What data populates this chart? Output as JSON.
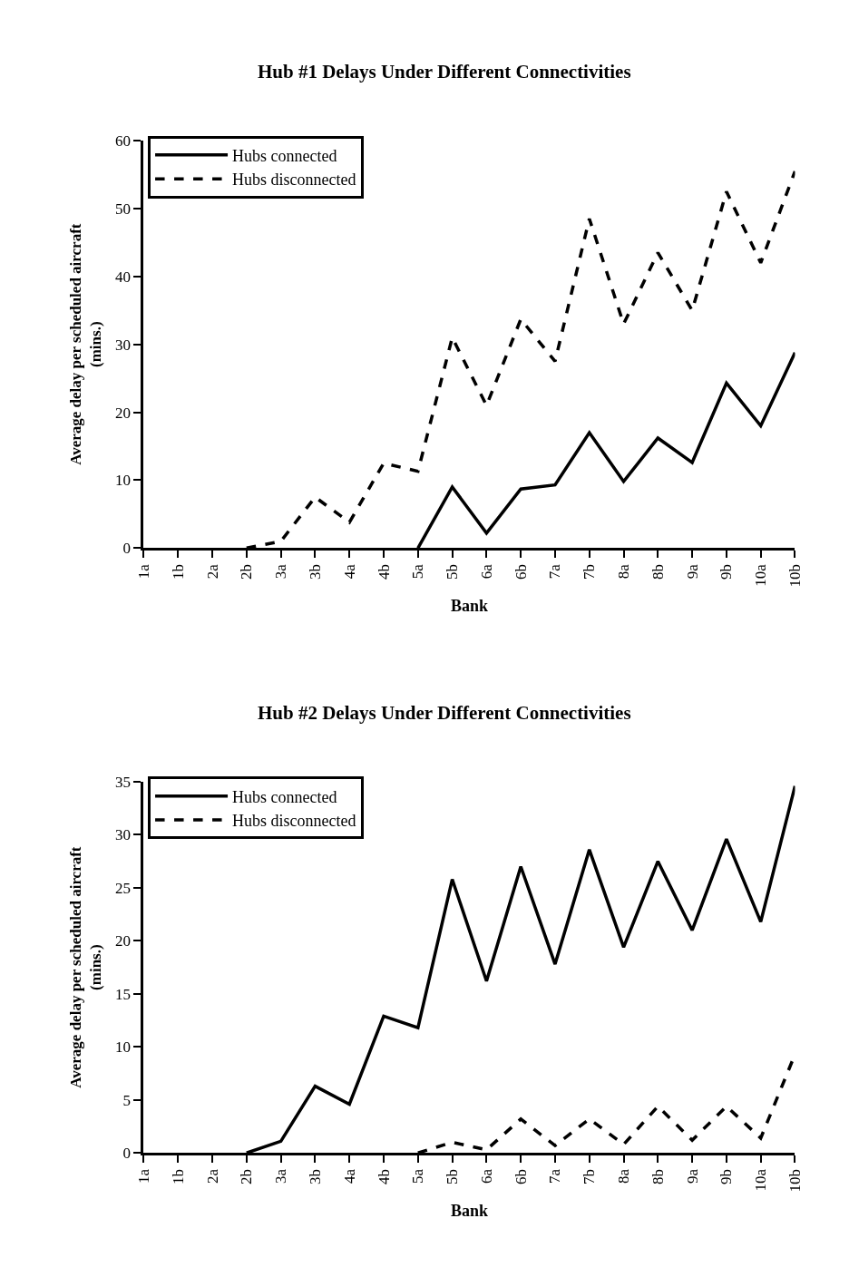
{
  "chart_data": [
    {
      "type": "line",
      "title": "Hub #1 Delays Under Different Connectivities",
      "xlabel": "Bank",
      "ylabel": "Average delay per scheduled aircraft\n(mins.)",
      "categories": [
        "1a",
        "1b",
        "2a",
        "2b",
        "3a",
        "3b",
        "4a",
        "4b",
        "5a",
        "5b",
        "6a",
        "6b",
        "7a",
        "7b",
        "8a",
        "8b",
        "9a",
        "9b",
        "10a",
        "10b"
      ],
      "ylim": [
        0,
        60
      ],
      "yticks": [
        0,
        10,
        20,
        30,
        40,
        50,
        60
      ],
      "legend": "top left",
      "series": [
        {
          "name": "Hubs connected",
          "color": "#000000",
          "line_style": "solid",
          "values": [
            null,
            null,
            null,
            null,
            null,
            null,
            null,
            null,
            0,
            9,
            2.2,
            8.7,
            9.3,
            17,
            9.8,
            16.2,
            12.6,
            24.3,
            18,
            28.8
          ]
        },
        {
          "name": "Hubs disconnected",
          "color": "#000000",
          "line_style": "dashed",
          "values": [
            null,
            null,
            null,
            0,
            1,
            7.5,
            3.8,
            12.5,
            11.3,
            31,
            21,
            33.7,
            27.5,
            48.5,
            33,
            43.5,
            35,
            52.5,
            42,
            55.5
          ]
        }
      ]
    },
    {
      "type": "line",
      "title": "Hub #2 Delays Under Different Connectivities",
      "xlabel": "Bank",
      "ylabel": "Average delay per scheduled aircraft\n(mins.)",
      "categories": [
        "1a",
        "1b",
        "2a",
        "2b",
        "3a",
        "3b",
        "4a",
        "4b",
        "5a",
        "5b",
        "6a",
        "6b",
        "7a",
        "7b",
        "8a",
        "8b",
        "9a",
        "9b",
        "10a",
        "10b"
      ],
      "ylim": [
        0,
        35
      ],
      "yticks": [
        0,
        5,
        10,
        15,
        20,
        25,
        30,
        35
      ],
      "legend": "top left",
      "series": [
        {
          "name": "Hubs connected",
          "color": "#000000",
          "line_style": "solid",
          "values": [
            null,
            null,
            null,
            0,
            1.1,
            6.3,
            4.6,
            12.9,
            11.8,
            25.8,
            16.2,
            27,
            17.8,
            28.6,
            19.4,
            27.5,
            21,
            29.6,
            21.8,
            34.6
          ]
        },
        {
          "name": "Hubs disconnected",
          "color": "#000000",
          "line_style": "dashed",
          "values": [
            null,
            null,
            null,
            null,
            null,
            null,
            null,
            null,
            0,
            1,
            0.3,
            3.2,
            0.7,
            3.2,
            0.8,
            4.4,
            1.2,
            4.4,
            1.4,
            9.3
          ]
        }
      ]
    }
  ]
}
